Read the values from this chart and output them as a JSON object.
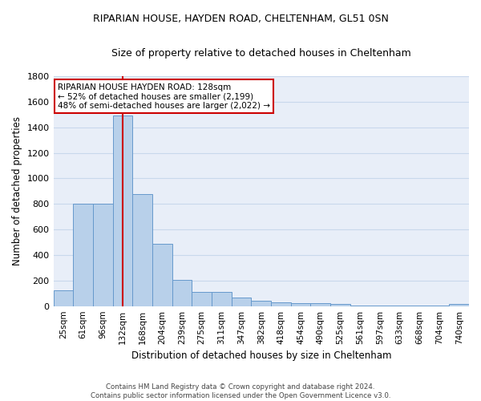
{
  "title": "RIPARIAN HOUSE, HAYDEN ROAD, CHELTENHAM, GL51 0SN",
  "subtitle": "Size of property relative to detached houses in Cheltenham",
  "xlabel": "Distribution of detached houses by size in Cheltenham",
  "ylabel": "Number of detached properties",
  "categories": [
    "25sqm",
    "61sqm",
    "96sqm",
    "132sqm",
    "168sqm",
    "204sqm",
    "239sqm",
    "275sqm",
    "311sqm",
    "347sqm",
    "382sqm",
    "418sqm",
    "454sqm",
    "490sqm",
    "525sqm",
    "561sqm",
    "597sqm",
    "633sqm",
    "668sqm",
    "704sqm",
    "740sqm"
  ],
  "values": [
    125,
    800,
    800,
    1490,
    880,
    490,
    205,
    110,
    110,
    65,
    40,
    30,
    25,
    20,
    15,
    5,
    3,
    3,
    2,
    2,
    15
  ],
  "bar_color": "#b8d0ea",
  "bar_edge_color": "#6699cc",
  "grid_color": "#c8d8ec",
  "background_color": "#e8eef8",
  "marker_index": 3,
  "marker_color": "#cc0000",
  "annotation_text": "RIPARIAN HOUSE HAYDEN ROAD: 128sqm\n← 52% of detached houses are smaller (2,199)\n48% of semi-detached houses are larger (2,022) →",
  "annotation_box_color": "#ffffff",
  "annotation_box_edge": "#cc0000",
  "footer": "Contains HM Land Registry data © Crown copyright and database right 2024.\nContains public sector information licensed under the Open Government Licence v3.0.",
  "ylim": [
    0,
    1800
  ],
  "yticks": [
    0,
    200,
    400,
    600,
    800,
    1000,
    1200,
    1400,
    1600,
    1800
  ]
}
